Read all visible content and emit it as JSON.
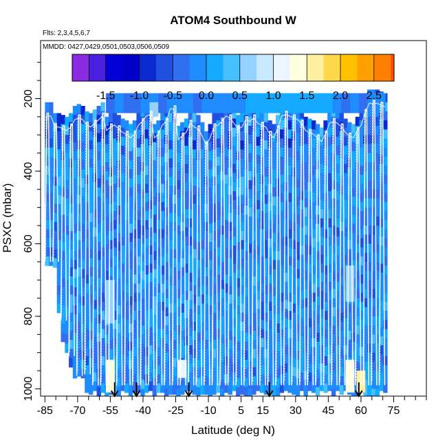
{
  "chart_data": {
    "type": "heatmap",
    "title": "ATOM4 Southbound W",
    "flights_note": "Flts: 2,3,4,5,6,7",
    "dates_note": "MMDD: 0427,0429,0501,0503,0506,0509",
    "xlabel": "Latitude (deg N)",
    "ylabel": "PSXC (mbar)",
    "xlim": [
      -87,
      90
    ],
    "ylim": [
      1020,
      40
    ],
    "x_ticks": [
      -85,
      -70,
      -55,
      -40,
      -25,
      -10,
      5,
      15,
      30,
      45,
      60,
      75
    ],
    "x_minor_ticks": [
      -80,
      -75,
      -65,
      -60,
      -50,
      -45,
      -35,
      -30,
      -20,
      -15,
      -5,
      0,
      10,
      20,
      25,
      35,
      40,
      50,
      55,
      65,
      70,
      80,
      85,
      90
    ],
    "y_ticks": [
      200,
      400,
      600,
      800,
      1000
    ],
    "colorbar": {
      "min": -2.0,
      "max": 2.8,
      "step": 0.25,
      "label_values": [
        -1.5,
        -1.0,
        -0.5,
        0.0,
        0.5,
        1.0,
        1.5,
        2.0,
        2.5
      ],
      "label_texts": [
        "-1.5",
        "-1.0",
        "-0.5",
        "0.0",
        "0.5",
        "1.0",
        "1.5",
        "2.0",
        "2.5"
      ],
      "colors": [
        "#8a2be2",
        "#4a1fe0",
        "#0000d6",
        "#0000c8",
        "#0a2ad0",
        "#2050e0",
        "#3070f0",
        "#1e8cff",
        "#14aaff",
        "#46bfff",
        "#96d2ff",
        "#c8e8ff",
        "#ebf5ff",
        "#ffffe0",
        "#fff0a0",
        "#ffd84a",
        "#ffc000",
        "#ffa000",
        "#ff8000",
        "#ff5000",
        "#ff1a00",
        "#e60000",
        "#c00000",
        "#9c1010"
      ]
    },
    "profile_tops_mbar": [
      240,
      240,
      270,
      270,
      275,
      280,
      270,
      250,
      245,
      250,
      265,
      270,
      260,
      250,
      240,
      280,
      270,
      265,
      275,
      285,
      290,
      300,
      290,
      265,
      255,
      240,
      235,
      300,
      290,
      265,
      255,
      220,
      220,
      305,
      295,
      285,
      260,
      270,
      275,
      295,
      320,
      300,
      270,
      265,
      255,
      240,
      245,
      260,
      275,
      270,
      250,
      255,
      245,
      260,
      265,
      270,
      290,
      300,
      275,
      240,
      235,
      240,
      245,
      250,
      260,
      280,
      285,
      290,
      300,
      310,
      290,
      260,
      255,
      260,
      270,
      285,
      295,
      300,
      280,
      265,
      230,
      205,
      205,
      205,
      210,
      215
    ],
    "highlights": [
      {
        "lat": -55,
        "p_top": 920,
        "p_bot": 1010,
        "value": 1.3
      },
      {
        "lat": -22,
        "p_top": 920,
        "p_bot": 970,
        "value": 1.1
      },
      {
        "lat": 55,
        "p_top": 920,
        "p_bot": 1010,
        "value": 1.4
      },
      {
        "lat": 60,
        "p_top": 950,
        "p_bot": 1010,
        "value": 1.6
      },
      {
        "lat": -55,
        "p_top": 700,
        "p_bot": 820,
        "value": 0.6
      },
      {
        "lat": 55,
        "p_top": 660,
        "p_bot": 760,
        "value": 0.7
      },
      {
        "lat": -35,
        "p_top": 210,
        "p_bot": 250,
        "value": 0.6
      }
    ],
    "arrows_lat": [
      -53,
      -43,
      -19,
      18,
      59
    ]
  }
}
